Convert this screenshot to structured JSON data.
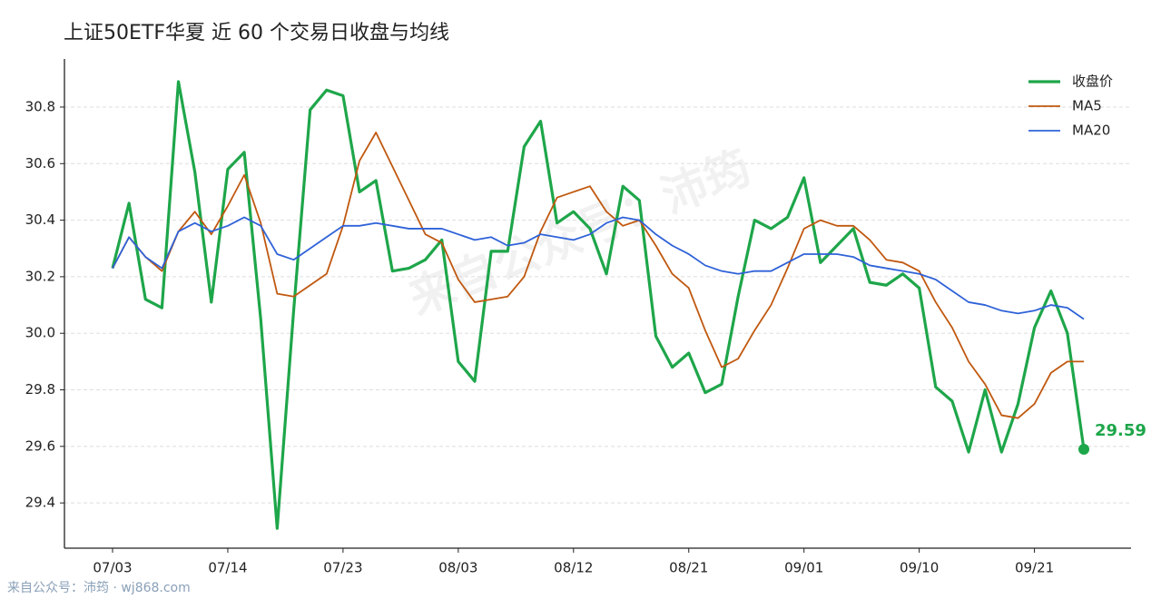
{
  "chart_data": {
    "type": "line",
    "title": "上证50ETF华夏 近 60 个交易日收盘与均线",
    "watermark": "来自公众号：沛筠",
    "footer": "来自公众号：沛筠 · wj868.com",
    "categories": [
      "07/03",
      null,
      null,
      null,
      null,
      null,
      null,
      "07/14",
      null,
      null,
      null,
      null,
      null,
      null,
      "07/23",
      null,
      null,
      null,
      null,
      null,
      null,
      "08/03",
      null,
      null,
      null,
      null,
      null,
      null,
      "08/12",
      null,
      null,
      null,
      null,
      null,
      null,
      "08/21",
      null,
      null,
      null,
      null,
      null,
      null,
      "09/01",
      null,
      null,
      null,
      null,
      null,
      null,
      "09/10",
      null,
      null,
      null,
      null,
      null,
      null,
      "09/21",
      null,
      null,
      null
    ],
    "series": [
      {
        "name": "收盘价",
        "color": "#1ea64a",
        "width": 3.2,
        "values": [
          30.23,
          30.46,
          30.12,
          30.09,
          30.89,
          30.57,
          30.11,
          30.58,
          30.64,
          30.05,
          29.31,
          30.08,
          30.79,
          30.86,
          30.84,
          30.5,
          30.54,
          30.22,
          30.23,
          30.26,
          30.33,
          29.9,
          29.83,
          30.29,
          30.29,
          30.66,
          30.75,
          30.39,
          30.43,
          30.37,
          30.21,
          30.52,
          30.47,
          29.99,
          29.88,
          29.93,
          29.79,
          29.82,
          30.13,
          30.4,
          30.37,
          30.41,
          30.55,
          30.25,
          30.31,
          30.37,
          30.18,
          30.17,
          30.21,
          30.16,
          29.81,
          29.76,
          29.58,
          29.8,
          29.58,
          29.75,
          30.02,
          30.15,
          30.0,
          29.59
        ]
      },
      {
        "name": "MA5",
        "color": "#c0580f",
        "width": 1.8,
        "values": [
          30.23,
          30.34,
          30.27,
          30.22,
          30.36,
          30.43,
          30.35,
          30.45,
          30.56,
          30.39,
          30.14,
          30.13,
          30.17,
          30.21,
          30.38,
          30.61,
          30.71,
          30.59,
          30.47,
          30.35,
          30.32,
          30.19,
          30.11,
          30.12,
          30.13,
          30.2,
          30.36,
          30.48,
          30.5,
          30.52,
          30.43,
          30.38,
          30.4,
          30.31,
          30.21,
          30.16,
          30.01,
          29.88,
          29.91,
          30.01,
          30.1,
          30.23,
          30.37,
          30.4,
          30.38,
          30.38,
          30.33,
          30.26,
          30.25,
          30.22,
          30.11,
          30.02,
          29.9,
          29.82,
          29.71,
          29.7,
          29.75,
          29.86,
          29.9,
          29.9
        ]
      },
      {
        "name": "MA20",
        "color": "#2f62d8",
        "width": 1.8,
        "values": [
          30.23,
          30.34,
          30.27,
          30.23,
          30.36,
          30.39,
          30.36,
          30.38,
          30.41,
          30.38,
          30.28,
          30.26,
          30.3,
          30.34,
          30.38,
          30.38,
          30.39,
          30.38,
          30.37,
          30.37,
          30.37,
          30.35,
          30.33,
          30.34,
          30.31,
          30.32,
          30.35,
          30.34,
          30.33,
          30.35,
          30.39,
          30.41,
          30.4,
          30.35,
          30.31,
          30.28,
          30.24,
          30.22,
          30.21,
          30.22,
          30.22,
          30.25,
          30.28,
          30.28,
          30.28,
          30.27,
          30.24,
          30.23,
          30.22,
          30.21,
          30.19,
          30.15,
          30.11,
          30.1,
          30.08,
          30.07,
          30.08,
          30.1,
          30.09,
          30.05
        ]
      }
    ],
    "ylim": [
      29.24,
      30.97
    ],
    "yticks": [
      29.4,
      29.6,
      29.8,
      {
        "value": 30,
        "label": "30.0"
      },
      30.2,
      30.4,
      30.6,
      30.8
    ],
    "grid": true,
    "legend": "upper right"
  }
}
